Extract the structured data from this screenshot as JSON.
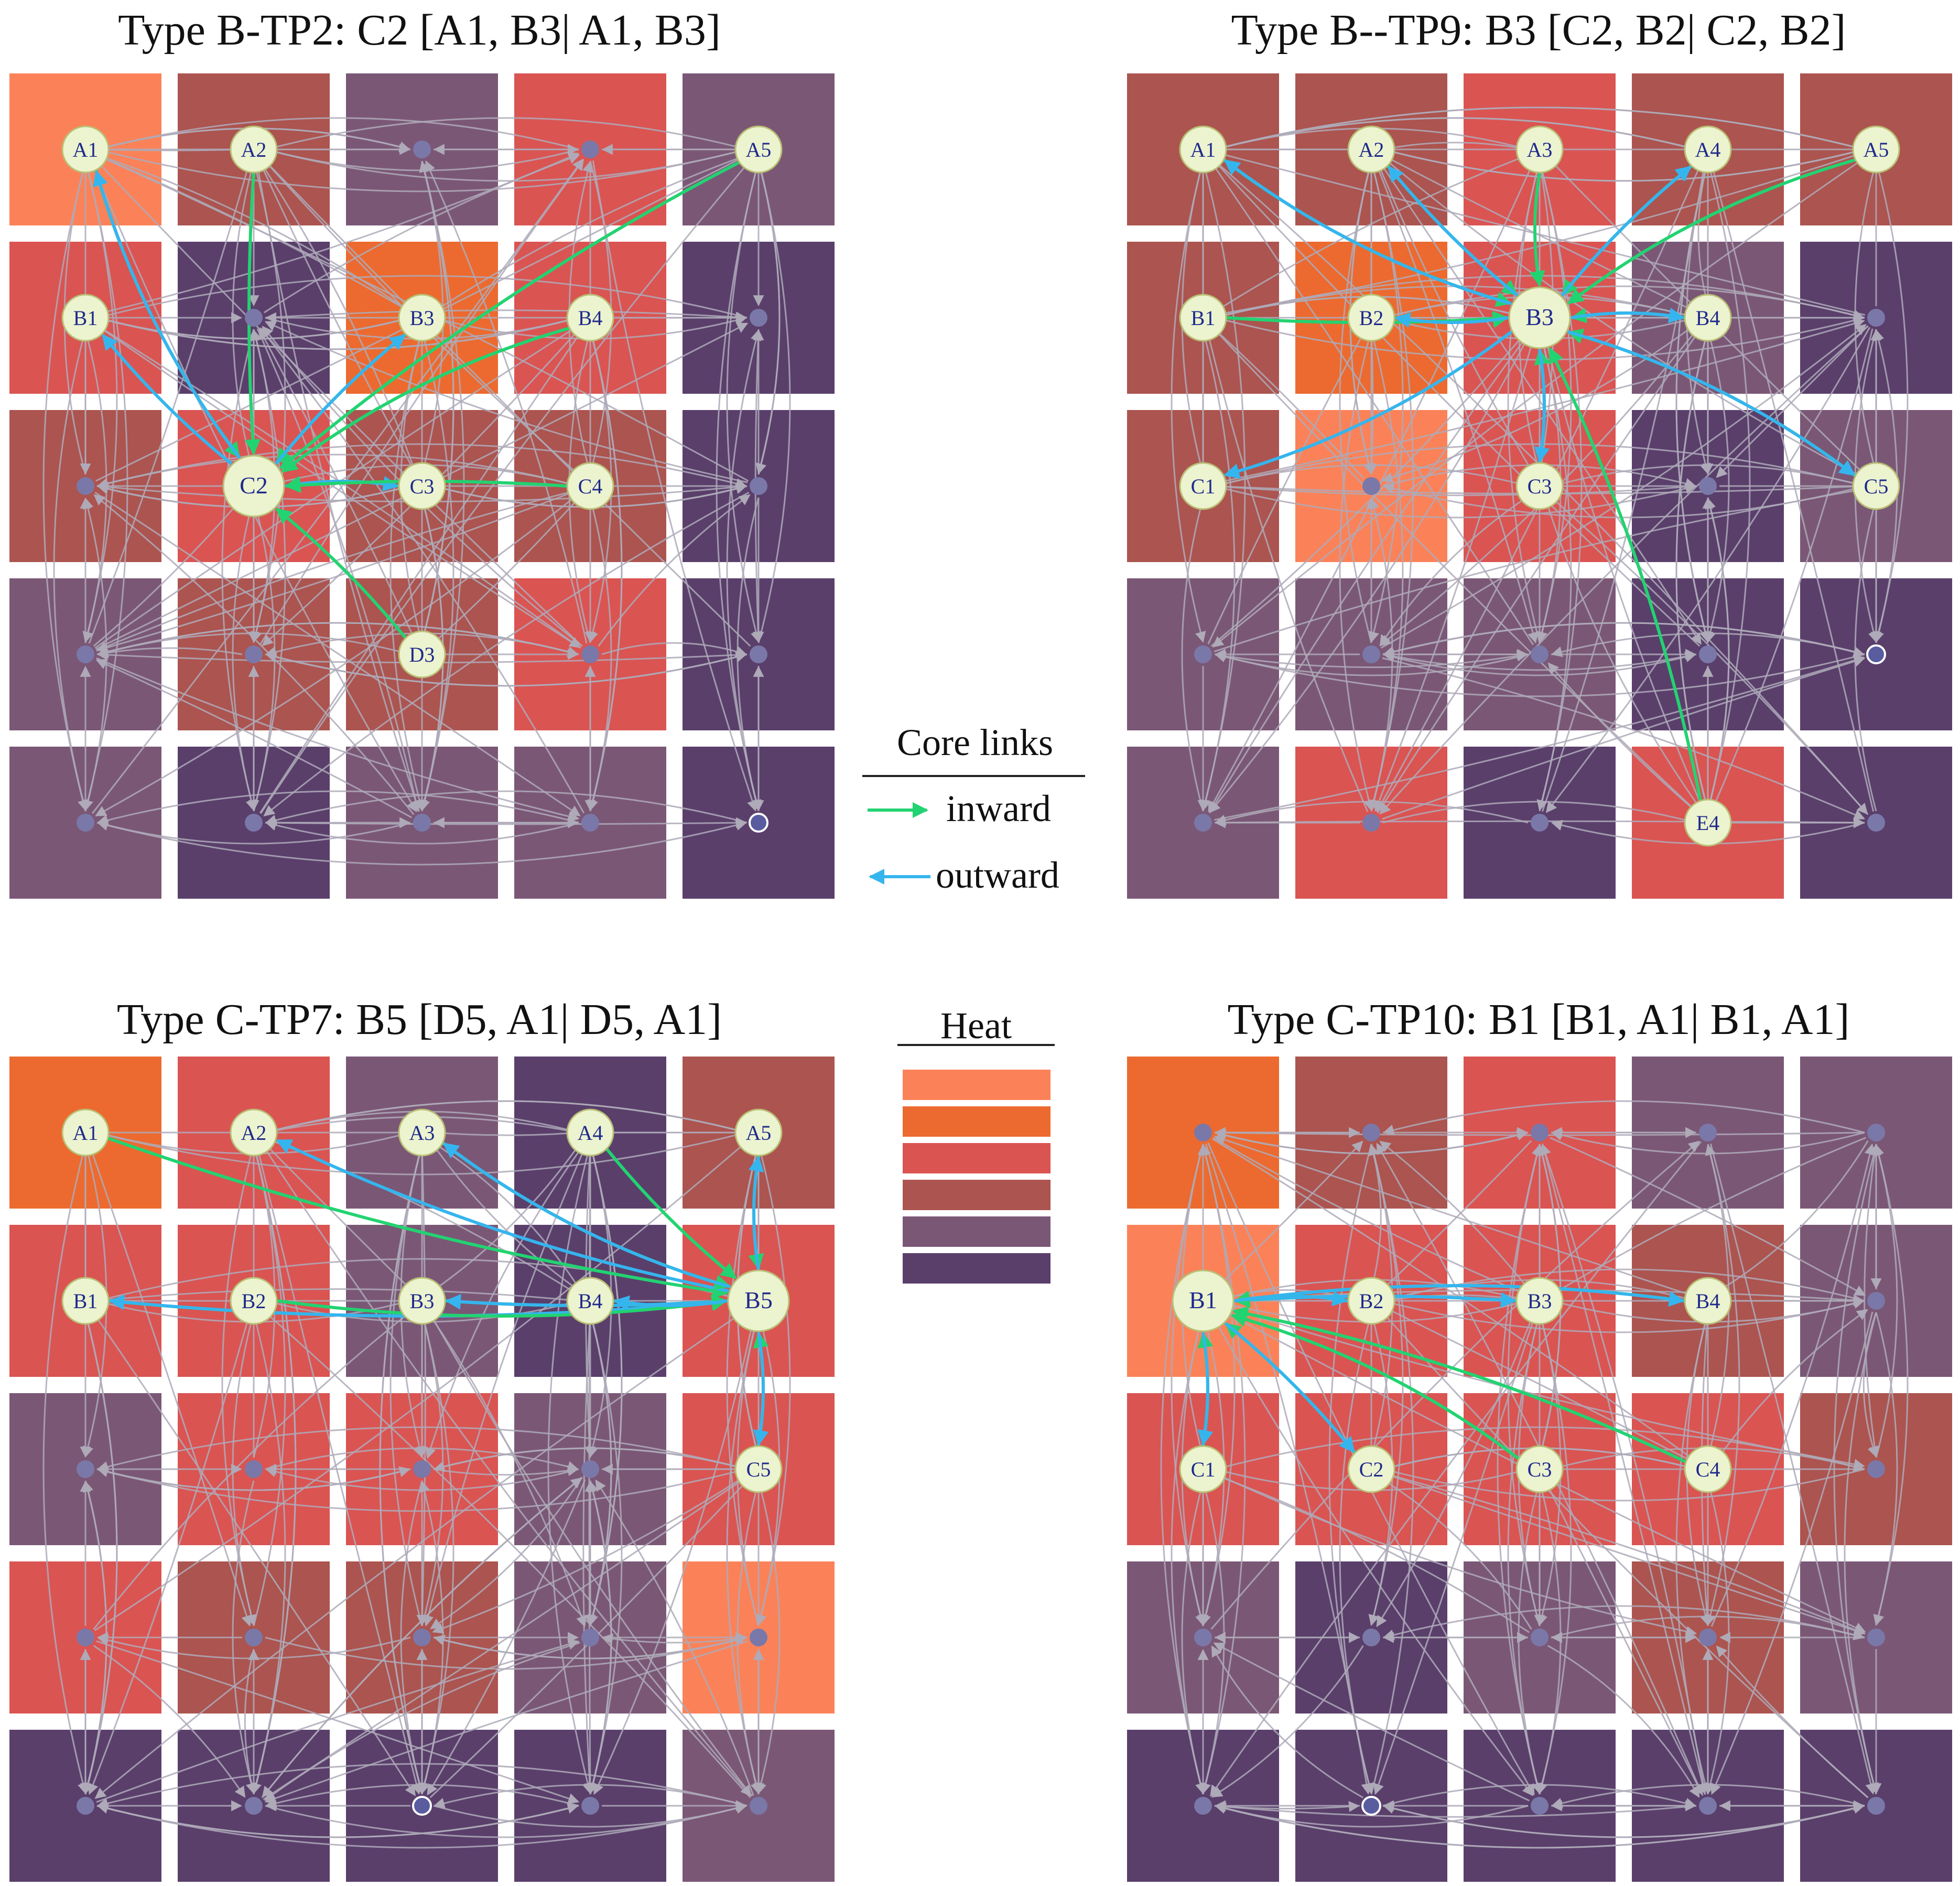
{
  "colors": {
    "heat": [
      "#fb8258",
      "#ec6a2f",
      "#da5452",
      "#ac544f",
      "#7b5776",
      "#5a3f6b"
    ],
    "inward": "#22d371",
    "outward": "#35b5ee",
    "edge": "#aeaab8",
    "node_fill": "#ecf3cf",
    "node_stroke": "#b9bf74",
    "small_node": "#7a78a8",
    "label": "#1e2a8c"
  },
  "panels": [
    {
      "id": "tp2",
      "title": "Type B-TP2: C2 [A1, B3| A1, B3]",
      "center": "C2",
      "heat_grid": [
        [
          0,
          3,
          4,
          2,
          4
        ],
        [
          2,
          5,
          1,
          2,
          5
        ],
        [
          3,
          2,
          3,
          3,
          5
        ],
        [
          4,
          3,
          3,
          2,
          5
        ],
        [
          4,
          5,
          4,
          4,
          5
        ]
      ],
      "labeled_nodes": [
        "A1",
        "A2",
        "A5",
        "B1",
        "B3",
        "B4",
        "C2",
        "C3",
        "C4",
        "D3"
      ],
      "empty_nodes": [
        "E5"
      ],
      "core_links": [
        {
          "from": "A1",
          "to": "C2",
          "dir": "inward"
        },
        {
          "from": "C2",
          "to": "A1",
          "dir": "outward"
        },
        {
          "from": "C2",
          "to": "B1",
          "dir": "outward"
        },
        {
          "from": "A2",
          "to": "C2",
          "dir": "inward"
        },
        {
          "from": "A5",
          "to": "C2",
          "dir": "inward"
        },
        {
          "from": "B3",
          "to": "C2",
          "dir": "inward"
        },
        {
          "from": "C2",
          "to": "B3",
          "dir": "outward"
        },
        {
          "from": "B4",
          "to": "C2",
          "dir": "inward"
        },
        {
          "from": "C3",
          "to": "C2",
          "dir": "inward"
        },
        {
          "from": "C2",
          "to": "C3",
          "dir": "outward"
        },
        {
          "from": "C4",
          "to": "C2",
          "dir": "inward"
        },
        {
          "from": "D3",
          "to": "C2",
          "dir": "inward"
        }
      ]
    },
    {
      "id": "tp9",
      "title": "Type B--TP9: B3 [C2, B2| C2, B2]",
      "center": "B3",
      "heat_grid": [
        [
          3,
          3,
          2,
          3,
          3
        ],
        [
          3,
          1,
          2,
          4,
          5
        ],
        [
          3,
          0,
          2,
          5,
          4
        ],
        [
          4,
          4,
          4,
          5,
          5
        ],
        [
          4,
          2,
          5,
          2,
          5
        ]
      ],
      "labeled_nodes": [
        "A1",
        "A2",
        "A3",
        "A4",
        "A5",
        "B1",
        "B2",
        "B3",
        "B4",
        "C1",
        "C3",
        "C5",
        "E4"
      ],
      "empty_nodes": [
        "D5"
      ],
      "core_links": [
        {
          "from": "A1",
          "to": "B3",
          "dir": "inward"
        },
        {
          "from": "B3",
          "to": "A1",
          "dir": "outward"
        },
        {
          "from": "A2",
          "to": "B3",
          "dir": "inward"
        },
        {
          "from": "B3",
          "to": "A2",
          "dir": "outward"
        },
        {
          "from": "A3",
          "to": "B3",
          "dir": "inward"
        },
        {
          "from": "A4",
          "to": "B3",
          "dir": "inward"
        },
        {
          "from": "B3",
          "to": "A4",
          "dir": "outward"
        },
        {
          "from": "A5",
          "to": "B3",
          "dir": "inward"
        },
        {
          "from": "B1",
          "to": "B3",
          "dir": "inward"
        },
        {
          "from": "B2",
          "to": "B3",
          "dir": "inward"
        },
        {
          "from": "B3",
          "to": "B2",
          "dir": "outward"
        },
        {
          "from": "B4",
          "to": "B3",
          "dir": "inward"
        },
        {
          "from": "B3",
          "to": "B4",
          "dir": "outward"
        },
        {
          "from": "B3",
          "to": "C1",
          "dir": "outward"
        },
        {
          "from": "C3",
          "to": "B3",
          "dir": "inward"
        },
        {
          "from": "B3",
          "to": "C3",
          "dir": "outward"
        },
        {
          "from": "C5",
          "to": "B3",
          "dir": "inward"
        },
        {
          "from": "B3",
          "to": "C5",
          "dir": "outward"
        },
        {
          "from": "E4",
          "to": "B3",
          "dir": "inward"
        }
      ]
    },
    {
      "id": "tp7",
      "title": "Type C-TP7: B5 [D5, A1| D5, A1]",
      "center": "B5",
      "heat_grid": [
        [
          1,
          2,
          4,
          5,
          3
        ],
        [
          2,
          2,
          4,
          5,
          2
        ],
        [
          4,
          2,
          2,
          4,
          2
        ],
        [
          2,
          3,
          3,
          4,
          0
        ],
        [
          5,
          5,
          5,
          5,
          4
        ]
      ],
      "labeled_nodes": [
        "A1",
        "A2",
        "A3",
        "A4",
        "A5",
        "B1",
        "B2",
        "B3",
        "B4",
        "B5",
        "C5"
      ],
      "empty_nodes": [
        "E3"
      ],
      "core_links": [
        {
          "from": "A1",
          "to": "B5",
          "dir": "inward"
        },
        {
          "from": "B5",
          "to": "A2",
          "dir": "outward"
        },
        {
          "from": "A3",
          "to": "B5",
          "dir": "inward"
        },
        {
          "from": "B5",
          "to": "A3",
          "dir": "outward"
        },
        {
          "from": "A4",
          "to": "B5",
          "dir": "inward"
        },
        {
          "from": "A5",
          "to": "B5",
          "dir": "inward"
        },
        {
          "from": "B5",
          "to": "A5",
          "dir": "outward"
        },
        {
          "from": "B1",
          "to": "B5",
          "dir": "inward"
        },
        {
          "from": "B5",
          "to": "B1",
          "dir": "outward"
        },
        {
          "from": "B2",
          "to": "B5",
          "dir": "inward"
        },
        {
          "from": "B3",
          "to": "B5",
          "dir": "inward"
        },
        {
          "from": "B5",
          "to": "B3",
          "dir": "outward"
        },
        {
          "from": "B4",
          "to": "B5",
          "dir": "inward"
        },
        {
          "from": "B5",
          "to": "B4",
          "dir": "outward"
        },
        {
          "from": "C5",
          "to": "B5",
          "dir": "inward"
        },
        {
          "from": "B5",
          "to": "C5",
          "dir": "outward"
        }
      ]
    },
    {
      "id": "tp10",
      "title": "Type C-TP10: B1 [B1, A1| B1, A1]",
      "center": "B1",
      "heat_grid": [
        [
          1,
          3,
          2,
          4,
          4
        ],
        [
          0,
          2,
          2,
          3,
          4
        ],
        [
          2,
          2,
          2,
          2,
          3
        ],
        [
          4,
          5,
          4,
          3,
          4
        ],
        [
          5,
          5,
          5,
          5,
          5
        ]
      ],
      "labeled_nodes": [
        "B1",
        "B2",
        "B3",
        "B4",
        "C1",
        "C2",
        "C3",
        "C4"
      ],
      "empty_nodes": [
        "E2"
      ],
      "core_links": [
        {
          "from": "B2",
          "to": "B1",
          "dir": "inward"
        },
        {
          "from": "B1",
          "to": "B2",
          "dir": "outward"
        },
        {
          "from": "B3",
          "to": "B1",
          "dir": "inward"
        },
        {
          "from": "B1",
          "to": "B3",
          "dir": "outward"
        },
        {
          "from": "B4",
          "to": "B1",
          "dir": "inward"
        },
        {
          "from": "B1",
          "to": "B4",
          "dir": "outward"
        },
        {
          "from": "C1",
          "to": "B1",
          "dir": "inward"
        },
        {
          "from": "B1",
          "to": "C1",
          "dir": "outward"
        },
        {
          "from": "C2",
          "to": "B1",
          "dir": "inward"
        },
        {
          "from": "B1",
          "to": "C2",
          "dir": "outward"
        },
        {
          "from": "C3",
          "to": "B1",
          "dir": "inward"
        },
        {
          "from": "C4",
          "to": "B1",
          "dir": "inward"
        }
      ]
    }
  ],
  "legend": {
    "core_title": "Core links",
    "inward_label": "inward",
    "outward_label": "outward",
    "heat_title": "Heat"
  }
}
